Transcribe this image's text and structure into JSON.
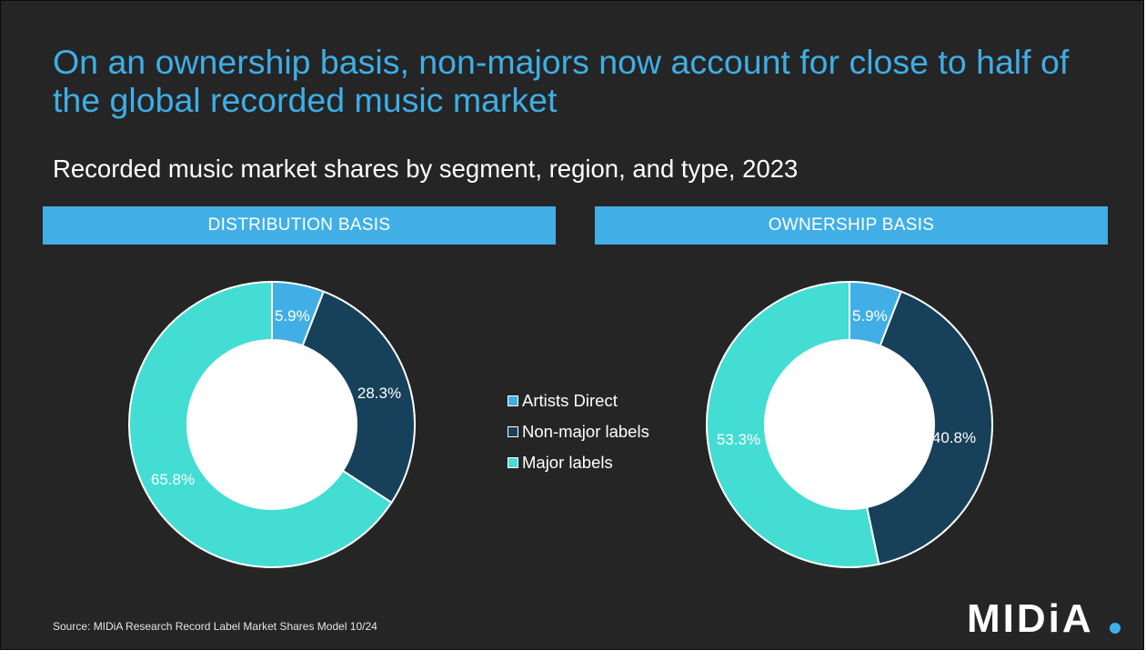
{
  "title": "On an ownership basis, non-majors now account for close to half of the global recorded music market",
  "subtitle": "Recorded music market shares by segment, region, and type, 2023",
  "source": "Source: MIDiA Research Record Label Market Shares Model 10/24",
  "logo_text": "MIDiA",
  "colors": {
    "background": "#252525",
    "title": "#3eaee6",
    "band": "#41afe6",
    "artists_direct": "#41afe6",
    "non_major": "#17405a",
    "major": "#43ddd3"
  },
  "chart_data": [
    {
      "type": "pie",
      "title": "DISTRIBUTION BASIS",
      "legend_position": "center",
      "categories": [
        "Artists Direct",
        "Non-major labels",
        "Major labels"
      ],
      "values": [
        5.9,
        28.3,
        65.8
      ],
      "labels": [
        "5.9%",
        "28.3%",
        "65.8%"
      ]
    },
    {
      "type": "pie",
      "title": "OWNERSHIP BASIS",
      "legend_position": "center",
      "categories": [
        "Artists Direct",
        "Non-major labels",
        "Major labels"
      ],
      "values": [
        5.9,
        40.8,
        53.3
      ],
      "labels": [
        "5.9%",
        "40.8%",
        "53.3%"
      ]
    }
  ]
}
